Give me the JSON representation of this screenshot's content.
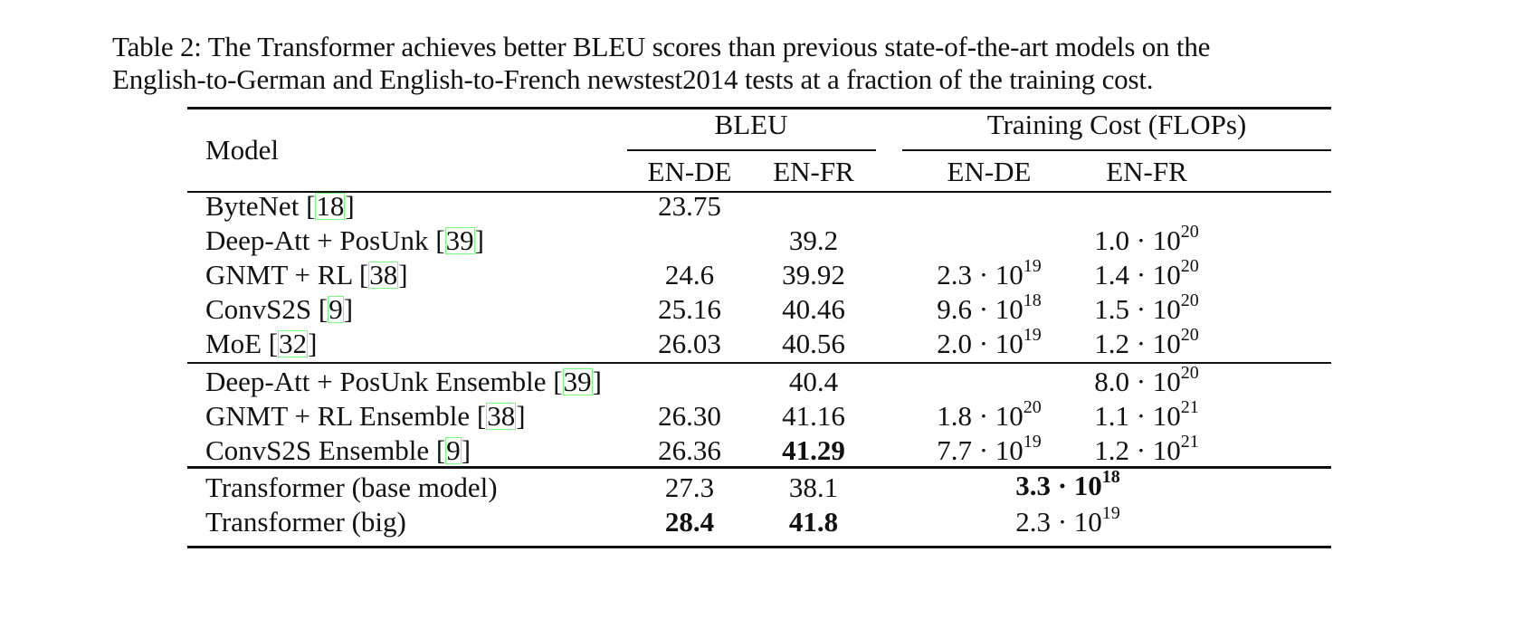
{
  "caption": {
    "line1": "Table 2: The Transformer achieves better BLEU scores than previous state-of-the-art models on the",
    "line2": "English-to-German and English-to-French newstest2014 tests at a fraction of the training cost."
  },
  "header": {
    "model": "Model",
    "bleu": "BLEU",
    "training_cost": "Training Cost (FLOPs)",
    "bleu_en_de": "EN-DE",
    "bleu_en_fr": "EN-FR",
    "cost_en_de": "EN-DE",
    "cost_en_fr": "EN-FR"
  },
  "rows": [
    {
      "name": "ByteNet ",
      "ref": "18",
      "ref_close": "]",
      "ref_open": "[",
      "bleu_de": "23.75",
      "bleu_fr": "",
      "cost_de": "",
      "cost_de_exp": "",
      "cost_fr": "",
      "cost_fr_exp": ""
    },
    {
      "name": "Deep-Att + PosUnk ",
      "ref": "39",
      "ref_open": "[",
      "ref_close": "]",
      "bleu_de": "",
      "bleu_fr": "39.2",
      "cost_de": "",
      "cost_de_exp": "",
      "cost_fr": "1.0 · 10",
      "cost_fr_exp": "20"
    },
    {
      "name": "GNMT + RL ",
      "ref": "38",
      "ref_open": "[",
      "ref_close": "]",
      "bleu_de": "24.6",
      "bleu_fr": "39.92",
      "cost_de": "2.3 · 10",
      "cost_de_exp": "19",
      "cost_fr": "1.4 · 10",
      "cost_fr_exp": "20"
    },
    {
      "name": "ConvS2S ",
      "ref": "9",
      "ref_open": "[",
      "ref_close": "]",
      "bleu_de": "25.16",
      "bleu_fr": "40.46",
      "cost_de": "9.6 · 10",
      "cost_de_exp": "18",
      "cost_fr": "1.5 · 10",
      "cost_fr_exp": "20"
    },
    {
      "name": "MoE ",
      "ref": "32",
      "ref_open": "[",
      "ref_close": "]",
      "bleu_de": "26.03",
      "bleu_fr": "40.56",
      "cost_de": "2.0 · 10",
      "cost_de_exp": "19",
      "cost_fr": "1.2 · 10",
      "cost_fr_exp": "20"
    },
    {
      "name": "Deep-Att + PosUnk Ensemble ",
      "ref": "39",
      "ref_open": "[",
      "ref_close": "]",
      "bleu_de": "",
      "bleu_fr": "40.4",
      "cost_de": "",
      "cost_de_exp": "",
      "cost_fr": "8.0 · 10",
      "cost_fr_exp": "20"
    },
    {
      "name": "GNMT + RL Ensemble ",
      "ref": "38",
      "ref_open": "[",
      "ref_close": "]",
      "bleu_de": "26.30",
      "bleu_fr": "41.16",
      "cost_de": "1.8 · 10",
      "cost_de_exp": "20",
      "cost_fr": "1.1 · 10",
      "cost_fr_exp": "21"
    },
    {
      "name": "ConvS2S Ensemble ",
      "ref": "9",
      "ref_open": "[",
      "ref_close": "]",
      "bleu_de": "26.36",
      "bleu_fr": "41.29",
      "cost_de": "7.7 · 10",
      "cost_de_exp": "19",
      "cost_fr": "1.2 · 10",
      "cost_fr_exp": "21"
    }
  ],
  "transformer_rows": [
    {
      "name": "Transformer (base model)",
      "bleu_de": "27.3",
      "bleu_fr": "38.1",
      "cost": "3.3 · 10",
      "cost_exp": "18"
    },
    {
      "name": "Transformer (big)",
      "bleu_de": "28.4",
      "bleu_fr": "41.8",
      "cost": "2.3 · 10",
      "cost_exp": "19"
    }
  ]
}
